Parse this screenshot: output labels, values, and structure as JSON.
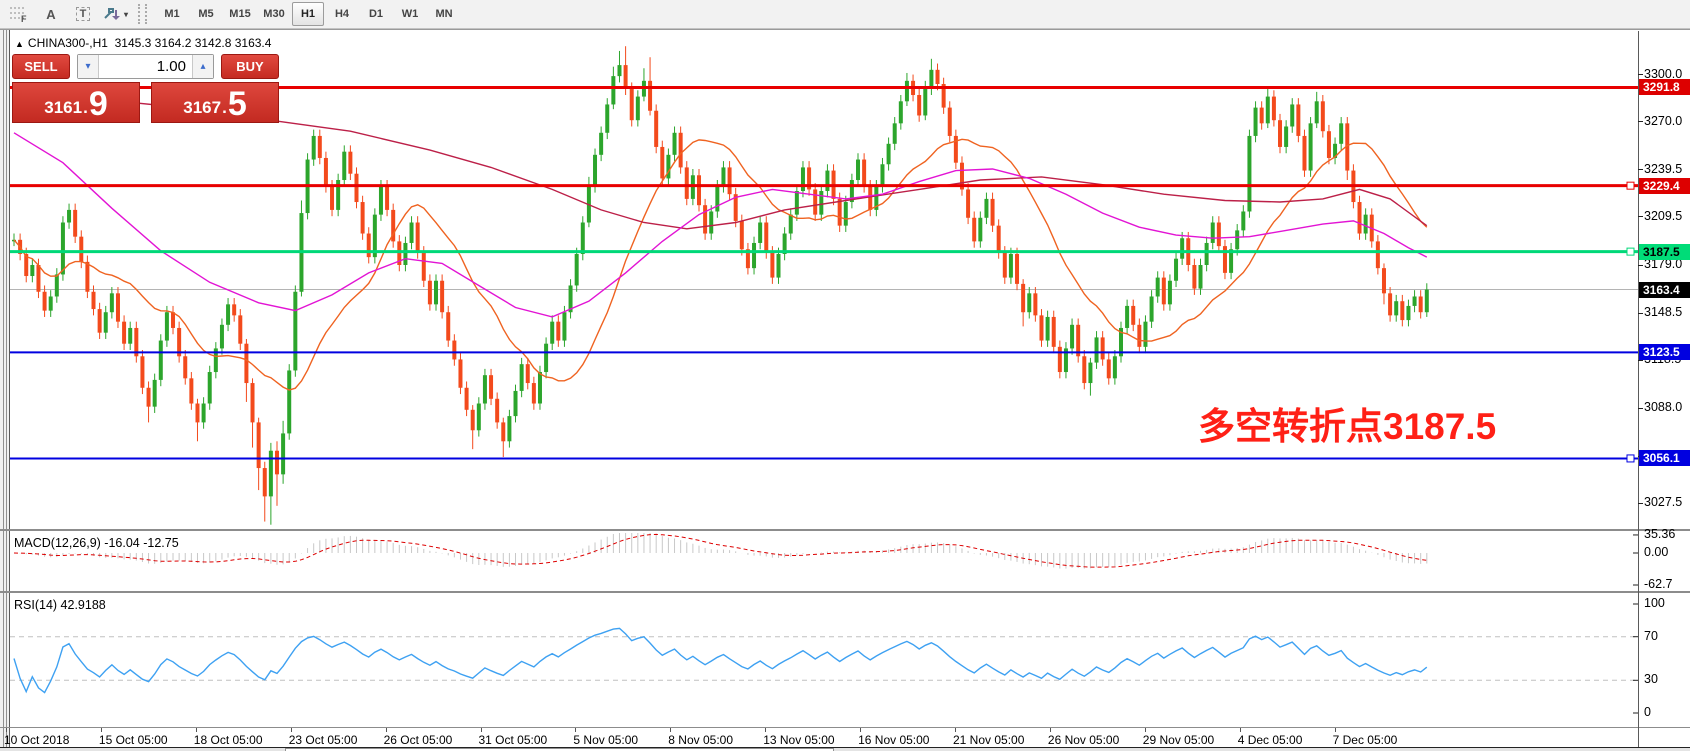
{
  "toolbar": {
    "tools": [
      {
        "name": "fibonacci-grid",
        "glyph": "F"
      },
      {
        "name": "text-label",
        "glyph": "A"
      },
      {
        "name": "text-box",
        "glyph": "T"
      },
      {
        "name": "arrows-style",
        "glyph": "arrows"
      }
    ],
    "timeframes": [
      "M1",
      "M5",
      "M15",
      "M30",
      "H1",
      "H4",
      "D1",
      "W1",
      "MN"
    ],
    "active_timeframe": "H1"
  },
  "chart_header": {
    "collapse_icon": "▲",
    "symbol": "CHINA300-,H1",
    "ohlc": "3145.3 3164.2 3142.8 3163.4"
  },
  "trade_panel": {
    "sell_label": "SELL",
    "buy_label": "BUY",
    "volume": "1.00",
    "spin_down": "▾",
    "spin_up": "▴",
    "sell_price": {
      "base": "3161",
      "dot": ".",
      "big": "9"
    },
    "buy_price": {
      "base": "3167",
      "dot": ".",
      "big": "5"
    }
  },
  "annotation": {
    "text": "多空转折点3187.5",
    "color": "#ff2016"
  },
  "price_axis": {
    "ticks": [
      {
        "text": "3300.0",
        "price": 3300.0
      },
      {
        "text": "3270.0",
        "price": 3270.0
      },
      {
        "text": "3239.5",
        "price": 3239.5
      },
      {
        "text": "3209.5",
        "price": 3209.5
      },
      {
        "text": "3179.0",
        "price": 3179.0
      },
      {
        "text": "3148.5",
        "price": 3148.5
      },
      {
        "text": "3118.5",
        "price": 3118.5
      },
      {
        "text": "3088.0",
        "price": 3088.0
      },
      {
        "text": "3057.5",
        "price": 3057.5
      },
      {
        "text": "3027.5",
        "price": 3027.5
      }
    ],
    "line_labels": [
      {
        "text": "3291.8",
        "price": 3291.8,
        "bg": "#dd0000",
        "fg": "#ffffff"
      },
      {
        "text": "3229.4",
        "price": 3229.4,
        "bg": "#dd0000",
        "fg": "#ffffff"
      },
      {
        "text": "3187.5",
        "price": 3187.5,
        "bg": "#00dc78",
        "fg": "#000000"
      },
      {
        "text": "3163.4",
        "price": 3163.4,
        "bg": "#000000",
        "fg": "#ffffff"
      },
      {
        "text": "3123.5",
        "price": 3123.5,
        "bg": "#0000e0",
        "fg": "#ffffff"
      },
      {
        "text": "3056.1",
        "price": 3056.1,
        "bg": "#0000e0",
        "fg": "#ffffff"
      }
    ]
  },
  "time_axis": {
    "labels": [
      "10 Oct 2018",
      "15 Oct 05:00",
      "18 Oct 05:00",
      "23 Oct 05:00",
      "26 Oct 05:00",
      "31 Oct 05:00",
      "5 Nov 05:00",
      "8 Nov 05:00",
      "13 Nov 05:00",
      "16 Nov 05:00",
      "21 Nov 05:00",
      "26 Nov 05:00",
      "29 Nov 05:00",
      "4 Dec 05:00",
      "7 Dec 05:00"
    ]
  },
  "macd_panel": {
    "label": "MACD(12,26,9) -16.04 -12.75",
    "axis_labels": [
      {
        "text": "35.36",
        "value": 35.36
      },
      {
        "text": "0.00",
        "value": 0
      },
      {
        "text": "-62.7",
        "value": -62.7
      }
    ]
  },
  "rsi_panel": {
    "label": "RSI(14) 42.9188",
    "axis_labels": [
      {
        "text": "100",
        "value": 100
      },
      {
        "text": "70",
        "value": 70
      },
      {
        "text": "30",
        "value": 30
      },
      {
        "text": "0",
        "value": 0
      }
    ],
    "levels": [
      70,
      30
    ]
  },
  "chart_data": {
    "type": "candlestick",
    "symbol": "CHINA300",
    "timeframe": "H1",
    "current_bar": {
      "open": 3145.3,
      "high": 3164.2,
      "low": 3142.8,
      "close": 3163.4
    },
    "price_range": [
      3012,
      3325
    ],
    "last_price": 3163.4,
    "colors": {
      "up": "#2ca52c",
      "down": "#f34a1c",
      "last_line": "#b4b4b4",
      "macd_hist": "#c8c8c8",
      "macd_signal": "#dd0000",
      "rsi_line": "#3ea1f2",
      "level_dash": "#c0c0c0"
    },
    "closes": [
      3195,
      3186,
      3172,
      3179,
      3162,
      3150,
      3159,
      3173,
      3206,
      3214,
      3197,
      3181,
      3162,
      3151,
      3136,
      3149,
      3161,
      3143,
      3129,
      3139,
      3121,
      3101,
      3089,
      3106,
      3131,
      3149,
      3139,
      3121,
      3107,
      3091,
      3079,
      3091,
      3111,
      3126,
      3141,
      3154,
      3147,
      3129,
      3104,
      3079,
      3050,
      3032,
      3061,
      3046,
      3072,
      3112,
      3162,
      3212,
      3246,
      3261,
      3247,
      3229,
      3214,
      3233,
      3251,
      3237,
      3219,
      3199,
      3184,
      3211,
      3229,
      3214,
      3194,
      3179,
      3193,
      3206,
      3187,
      3169,
      3154,
      3169,
      3149,
      3131,
      3119,
      3101,
      3087,
      3074,
      3091,
      3109,
      3094,
      3079,
      3067,
      3083,
      3099,
      3116,
      3104,
      3091,
      3111,
      3129,
      3143,
      3131,
      3149,
      3166,
      3186,
      3206,
      3229,
      3249,
      3263,
      3281,
      3299,
      3306,
      3291,
      3271,
      3286,
      3296,
      3277,
      3254,
      3234,
      3249,
      3263,
      3241,
      3221,
      3236,
      3217,
      3199,
      3213,
      3229,
      3241,
      3224,
      3207,
      3189,
      3177,
      3193,
      3206,
      3187,
      3171,
      3186,
      3199,
      3211,
      3226,
      3241,
      3227,
      3211,
      3226,
      3239,
      3221,
      3204,
      3219,
      3233,
      3246,
      3229,
      3214,
      3229,
      3243,
      3256,
      3269,
      3283,
      3296,
      3287,
      3274,
      3291,
      3303,
      3294,
      3279,
      3261,
      3244,
      3227,
      3209,
      3194,
      3209,
      3221,
      3204,
      3187,
      3171,
      3186,
      3167,
      3149,
      3161,
      3147,
      3131,
      3146,
      3127,
      3111,
      3126,
      3141,
      3121,
      3104,
      3117,
      3133,
      3119,
      3107,
      3121,
      3139,
      3153,
      3141,
      3127,
      3143,
      3159,
      3171,
      3154,
      3169,
      3183,
      3196,
      3179,
      3164,
      3179,
      3193,
      3206,
      3191,
      3174,
      3189,
      3201,
      3213,
      3261,
      3279,
      3269,
      3286,
      3271,
      3254,
      3267,
      3281,
      3261,
      3239,
      3269,
      3283,
      3264,
      3247,
      3256,
      3269,
      3239,
      3219,
      3199,
      3211,
      3194,
      3177,
      3161,
      3147,
      3156,
      3144,
      3153,
      3159,
      3149,
      3163.4
    ],
    "wick_overrides": {
      "22": [
        4,
        10
      ],
      "30": [
        3,
        12
      ],
      "38": [
        3,
        12
      ],
      "39": [
        3,
        16
      ],
      "40": [
        3,
        14
      ],
      "41": [
        4,
        16
      ],
      "42": [
        5,
        18
      ],
      "43": [
        6,
        20
      ],
      "44": [
        8,
        6
      ],
      "47": [
        8,
        3
      ],
      "75": [
        3,
        12
      ],
      "80": [
        3,
        10
      ],
      "94": [
        6,
        3
      ],
      "98": [
        6,
        3
      ],
      "99": [
        9,
        4
      ],
      "100": [
        12,
        4
      ],
      "103": [
        8,
        3
      ],
      "104": [
        15,
        3
      ],
      "146": [
        5,
        3
      ],
      "149": [
        5,
        3
      ],
      "150": [
        7,
        4
      ],
      "165": [
        3,
        9
      ],
      "176": [
        3,
        8
      ],
      "205": [
        6,
        3
      ],
      "213": [
        6,
        3
      ],
      "218": [
        4,
        6
      ],
      "224": [
        3,
        7
      ],
      "231": [
        4,
        3
      ]
    },
    "hlines": [
      {
        "price": 3291.8,
        "color": "#e80000",
        "width": 3,
        "handle": false
      },
      {
        "price": 3229.4,
        "color": "#e80000",
        "width": 3,
        "handle": true
      },
      {
        "price": 3187.5,
        "color": "#00d878",
        "width": 3,
        "handle": true
      },
      {
        "price": 3123.5,
        "color": "#0000e0",
        "width": 2,
        "handle": false
      },
      {
        "price": 3056.1,
        "color": "#0000e0",
        "width": 2,
        "handle": true
      }
    ],
    "ma_lines": [
      {
        "name": "ma-slow",
        "color": "#bc2048",
        "points": [
          [
            0,
            3288
          ],
          [
            12,
            3285
          ],
          [
            25,
            3280
          ],
          [
            40,
            3272
          ],
          [
            55,
            3264
          ],
          [
            68,
            3252
          ],
          [
            78,
            3241
          ],
          [
            88,
            3227
          ],
          [
            96,
            3214
          ],
          [
            103,
            3206
          ],
          [
            110,
            3202
          ],
          [
            118,
            3206
          ],
          [
            126,
            3214
          ],
          [
            136,
            3220
          ],
          [
            148,
            3227
          ],
          [
            158,
            3233
          ],
          [
            168,
            3235
          ],
          [
            178,
            3230
          ],
          [
            188,
            3224
          ],
          [
            198,
            3220
          ],
          [
            207,
            3219
          ],
          [
            214,
            3221
          ],
          [
            220,
            3227
          ],
          [
            225,
            3221
          ],
          [
            231,
            3204
          ]
        ]
      },
      {
        "name": "ma-mid",
        "color": "#e214d4",
        "points": [
          [
            0,
            3263
          ],
          [
            8,
            3244
          ],
          [
            16,
            3215
          ],
          [
            24,
            3188
          ],
          [
            32,
            3168
          ],
          [
            40,
            3155
          ],
          [
            46,
            3150
          ],
          [
            52,
            3160
          ],
          [
            58,
            3174
          ],
          [
            64,
            3183
          ],
          [
            70,
            3180
          ],
          [
            76,
            3166
          ],
          [
            82,
            3152
          ],
          [
            88,
            3146
          ],
          [
            94,
            3156
          ],
          [
            100,
            3174
          ],
          [
            106,
            3194
          ],
          [
            112,
            3211
          ],
          [
            118,
            3222
          ],
          [
            124,
            3227
          ],
          [
            130,
            3224
          ],
          [
            136,
            3221
          ],
          [
            142,
            3224
          ],
          [
            148,
            3232
          ],
          [
            154,
            3239
          ],
          [
            160,
            3240
          ],
          [
            166,
            3234
          ],
          [
            172,
            3224
          ],
          [
            178,
            3212
          ],
          [
            184,
            3203
          ],
          [
            190,
            3198
          ],
          [
            196,
            3196
          ],
          [
            202,
            3197
          ],
          [
            208,
            3201
          ],
          [
            214,
            3205
          ],
          [
            219,
            3207
          ],
          [
            224,
            3199
          ],
          [
            228,
            3190
          ],
          [
            231,
            3184
          ]
        ]
      },
      {
        "name": "ma-fast",
        "color": "#ef6321",
        "period": 20
      }
    ]
  }
}
